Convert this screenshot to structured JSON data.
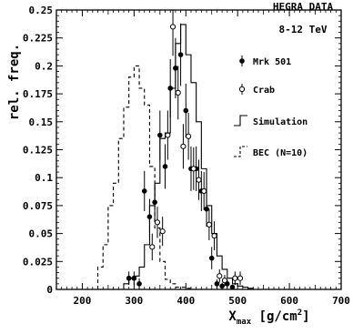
{
  "chart_data": {
    "type": "histogram",
    "title": "HEGRA DATA",
    "subtitle": "8-12 TeV",
    "ylabel": "rel. freq.",
    "xlabel_main": "X",
    "xlabel_sub": "max",
    "xlabel_unit_open": " [g/cm",
    "xlabel_unit_sup": "2",
    "xlabel_unit_close": "]",
    "xlim": [
      150,
      700
    ],
    "ylim": [
      0,
      0.25
    ],
    "x_ticks": [
      200,
      300,
      400,
      500,
      600,
      700
    ],
    "x_tick_labels": [
      "200",
      "300",
      "400",
      "500",
      "600",
      "700"
    ],
    "y_ticks": [
      0,
      0.025,
      0.05,
      0.075,
      0.1,
      0.125,
      0.15,
      0.175,
      0.2,
      0.225,
      0.25
    ],
    "y_tick_labels": [
      "0",
      "0.025",
      "0.05",
      "0.075",
      "0.1",
      "0.125",
      "0.15",
      "0.175",
      "0.2",
      "0.225",
      "0.25"
    ],
    "bin_edges": [
      230,
      240,
      250,
      260,
      270,
      280,
      290,
      300,
      310,
      320,
      330,
      340,
      350,
      360,
      370,
      380,
      390,
      400,
      410,
      420,
      430,
      440,
      450,
      460,
      470,
      480,
      490,
      500,
      510,
      520,
      530,
      540,
      550
    ],
    "series": [
      {
        "name": "Mrk 501",
        "kind": "points",
        "marker": "filled",
        "x": [
          290,
          300,
          310,
          320,
          330,
          340,
          350,
          360,
          370,
          380,
          390,
          400,
          410,
          420,
          430,
          440,
          450,
          460,
          470,
          480,
          490
        ],
        "y": [
          0.01,
          0.01,
          0.005,
          0.088,
          0.065,
          0.078,
          0.138,
          0.11,
          0.18,
          0.198,
          0.21,
          0.16,
          0.108,
          0.108,
          0.088,
          0.072,
          0.028,
          0.005,
          0.003,
          0.005,
          0.002
        ],
        "yerr": [
          0.006,
          0.006,
          0.005,
          0.018,
          0.016,
          0.017,
          0.022,
          0.02,
          0.026,
          0.027,
          0.028,
          0.024,
          0.02,
          0.02,
          0.018,
          0.016,
          0.01,
          0.004,
          0.003,
          0.004,
          0.002
        ]
      },
      {
        "name": "Crab",
        "kind": "points",
        "marker": "open",
        "x": [
          335,
          345,
          355,
          365,
          375,
          385,
          395,
          405,
          415,
          425,
          435,
          445,
          455,
          465,
          475,
          495,
          505
        ],
        "y": [
          0.038,
          0.06,
          0.052,
          0.138,
          0.235,
          0.176,
          0.128,
          0.137,
          0.108,
          0.098,
          0.088,
          0.058,
          0.048,
          0.012,
          0.008,
          0.01,
          0.01
        ],
        "yerr": [
          0.012,
          0.014,
          0.013,
          0.022,
          0.026,
          0.024,
          0.02,
          0.021,
          0.019,
          0.018,
          0.017,
          0.014,
          0.013,
          0.006,
          0.005,
          0.006,
          0.006
        ]
      },
      {
        "name": "Simulation",
        "kind": "step",
        "linestyle": "solid",
        "values": [
          0,
          0,
          0,
          0,
          0,
          0.005,
          0.01,
          0.012,
          0.02,
          0.04,
          0.075,
          0.095,
          0.135,
          0.14,
          0.18,
          0.22,
          0.237,
          0.21,
          0.185,
          0.15,
          0.108,
          0.075,
          0.05,
          0.03,
          0.018,
          0.01,
          0.005,
          0.003,
          0.002,
          0.001,
          0,
          0
        ]
      },
      {
        "name": "BEC (N=10)",
        "kind": "step",
        "linestyle": "dashed",
        "values": [
          0.02,
          0.04,
          0.075,
          0.095,
          0.135,
          0.163,
          0.19,
          0.2,
          0.18,
          0.165,
          0.11,
          0.055,
          0.025,
          0.009,
          0.005,
          0.002,
          0.002,
          0.001,
          0,
          0,
          0,
          0,
          0,
          0,
          0,
          0,
          0,
          0,
          0,
          0,
          0,
          0
        ]
      }
    ],
    "legend_placement": "top-right",
    "grid": false
  }
}
